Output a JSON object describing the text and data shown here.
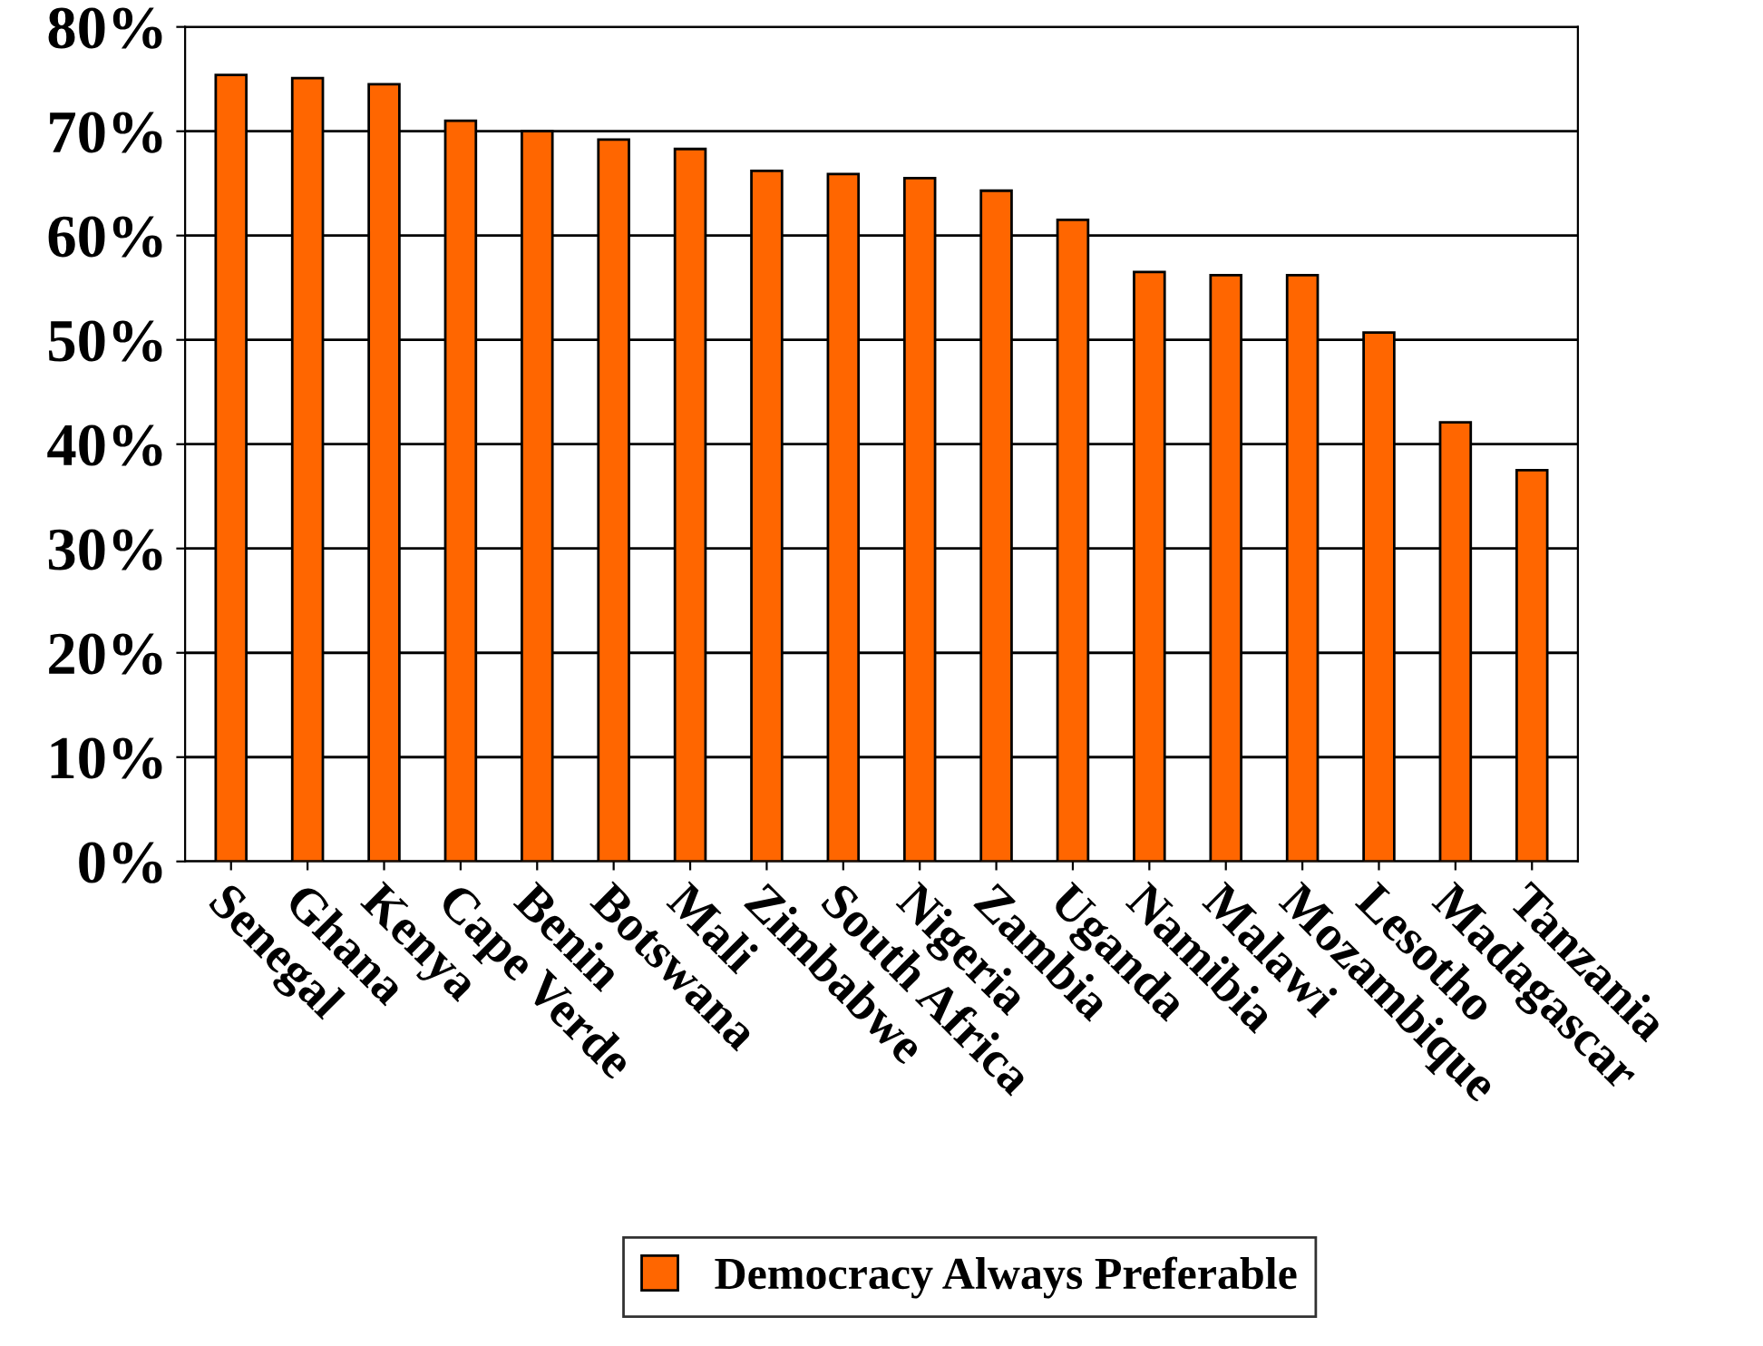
{
  "chart_data": {
    "type": "bar",
    "categories": [
      "Senegal",
      "Ghana",
      "Kenya",
      "Cape Verde",
      "Benin",
      "Botswana",
      "Mali",
      "Zimbabwe",
      "South Africa",
      "Nigeria",
      "Zambia",
      "Uganda",
      "Namibia",
      "Malawi",
      "Mozambique",
      "Lesotho",
      "Madagascar",
      "Tanzania"
    ],
    "series": [
      {
        "name": "Democracy Always Preferable",
        "color": "#ff6600",
        "values": [
          75.4,
          75.1,
          74.5,
          71.0,
          70.0,
          69.2,
          68.3,
          66.2,
          65.9,
          65.5,
          64.3,
          61.5,
          56.5,
          56.2,
          56.2,
          50.7,
          42.1,
          37.5
        ]
      }
    ],
    "ylim": [
      0,
      80
    ],
    "yticks": [
      {
        "value": 0,
        "label": "0%"
      },
      {
        "value": 10,
        "label": "10%"
      },
      {
        "value": 20,
        "label": "20%"
      },
      {
        "value": 30,
        "label": "30%"
      },
      {
        "value": 40,
        "label": "40%"
      },
      {
        "value": 50,
        "label": "50%"
      },
      {
        "value": 60,
        "label": "60%"
      },
      {
        "value": 70,
        "label": "70%"
      },
      {
        "value": 80,
        "label": "80%"
      }
    ],
    "grid": "y",
    "legend": "bottom"
  }
}
